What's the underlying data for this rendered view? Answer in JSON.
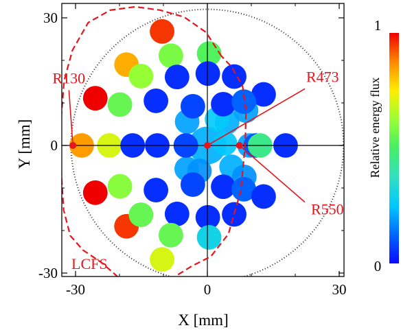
{
  "chart_data": {
    "type": "scatter",
    "title": "",
    "xlabel": "X [mm]",
    "ylabel": "Y [mm]",
    "xlim": [
      -34,
      34
    ],
    "ylim": [
      -34,
      34
    ],
    "x_ticks": [
      {
        "v": -30,
        "label": "-30"
      },
      {
        "v": 0,
        "label": "0"
      },
      {
        "v": 30,
        "label": "30"
      }
    ],
    "y_ticks": [
      {
        "v": 30,
        "label": "30"
      },
      {
        "v": 0,
        "label": "0"
      },
      {
        "v": -30,
        "label": "-30"
      }
    ],
    "grid": false,
    "colorbar": {
      "label": "Relative  energy flux",
      "min": 0,
      "max": 1,
      "min_label": "0",
      "max_label": "1",
      "colors": [
        "#0a0aff",
        "#0066ff",
        "#00c8ff",
        "#33e0c0",
        "#44ee66",
        "#99ff33",
        "#ffee00",
        "#ff8800",
        "#ee0000"
      ]
    },
    "dotted_circle_radius": 32,
    "spot_diameter": 5.6,
    "points": [
      {
        "x": -10.3,
        "y": 26.8,
        "flux": 0.95
      },
      {
        "x": -8.3,
        "y": 21.1,
        "flux": 0.58
      },
      {
        "x": 0.4,
        "y": 21.6,
        "flux": 0.52
      },
      {
        "x": -18.4,
        "y": 19.0,
        "flux": 0.83
      },
      {
        "x": -15.1,
        "y": 16.3,
        "flux": 0.62
      },
      {
        "x": -6.9,
        "y": 16.1,
        "flux": 0.05
      },
      {
        "x": 0.1,
        "y": 16.9,
        "flux": 0.05
      },
      {
        "x": 6.1,
        "y": 16.2,
        "flux": 0.05
      },
      {
        "x": -25.5,
        "y": 11.1,
        "flux": 1.0
      },
      {
        "x": -19.9,
        "y": 9.6,
        "flux": 0.55
      },
      {
        "x": 12.8,
        "y": 12.0,
        "flux": 0.05
      },
      {
        "x": -11.7,
        "y": 10.5,
        "flux": 0.05
      },
      {
        "x": -3.3,
        "y": 9.2,
        "flux": 0.08
      },
      {
        "x": 3.6,
        "y": 9.7,
        "flux": 0.05
      },
      {
        "x": 8.3,
        "y": 10.3,
        "flux": 0.12
      },
      {
        "x": -28.6,
        "y": 0.0,
        "flux": 0.85
      },
      {
        "x": -22.3,
        "y": 0.0,
        "flux": 0.7
      },
      {
        "x": -17.0,
        "y": 0.0,
        "flux": 0.05
      },
      {
        "x": -11.4,
        "y": 0.0,
        "flux": 0.05
      },
      {
        "x": -4.9,
        "y": 0.0,
        "flux": 0.08
      },
      {
        "x": 11.0,
        "y": 0.0,
        "flux": 0.1
      },
      {
        "x": 12.0,
        "y": 0.0,
        "flux": 0.45
      },
      {
        "x": 17.8,
        "y": 0.0,
        "flux": 0.05
      },
      {
        "x": -25.5,
        "y": -11.1,
        "flux": 1.0
      },
      {
        "x": -19.9,
        "y": -9.6,
        "flux": 0.6
      },
      {
        "x": -11.7,
        "y": -10.5,
        "flux": 0.05
      },
      {
        "x": -3.3,
        "y": -9.2,
        "flux": 0.08
      },
      {
        "x": 3.6,
        "y": -9.7,
        "flux": 0.05
      },
      {
        "x": 8.3,
        "y": -10.3,
        "flux": 0.12
      },
      {
        "x": 12.8,
        "y": -12.0,
        "flux": 0.05
      },
      {
        "x": -18.4,
        "y": -19.0,
        "flux": 0.95
      },
      {
        "x": -15.1,
        "y": -16.3,
        "flux": 0.55
      },
      {
        "x": -6.9,
        "y": -16.1,
        "flux": 0.05
      },
      {
        "x": 0.1,
        "y": -16.9,
        "flux": 0.05
      },
      {
        "x": 6.1,
        "y": -16.2,
        "flux": 0.05
      },
      {
        "x": -8.3,
        "y": -21.1,
        "flux": 0.55
      },
      {
        "x": 0.4,
        "y": -21.6,
        "flux": 0.3
      },
      {
        "x": -10.3,
        "y": -26.8,
        "flux": 0.7
      }
    ],
    "central_cluster": [
      {
        "x": 0.0,
        "y": 0.0,
        "d": 8.6,
        "flux": 0.22
      },
      {
        "x": 4.5,
        "y": 5.5,
        "flux": 0.22
      },
      {
        "x": 5.5,
        "y": -5.0,
        "flux": 0.22
      },
      {
        "x": -4.6,
        "y": 5.6,
        "flux": 0.2
      },
      {
        "x": -4.7,
        "y": -5.5,
        "flux": 0.2
      },
      {
        "x": 9.6,
        "y": 0.0,
        "flux": 0.2
      },
      {
        "x": 4.0,
        "y": 0.5,
        "flux": 0.25
      },
      {
        "x": 2.2,
        "y": 6.2,
        "flux": 0.26
      },
      {
        "x": -1.8,
        "y": -6.0,
        "flux": 0.18
      },
      {
        "x": 8.8,
        "y": 8.2,
        "flux": 0.2
      },
      {
        "x": 8.4,
        "y": -7.4,
        "flux": 0.18
      }
    ],
    "lcfs": {
      "label": "LCFS",
      "points": [
        [
          3.2,
          21.0
        ],
        [
          -0.3,
          26.6
        ],
        [
          -5.3,
          30.2
        ],
        [
          -10.7,
          31.8
        ],
        [
          -16.4,
          32.6
        ],
        [
          -22.1,
          31.8
        ],
        [
          -27.1,
          28.9
        ],
        [
          -30.7,
          22.4
        ],
        [
          -32.6,
          15.2
        ],
        [
          -33.2,
          7.3
        ],
        [
          -33.3,
          0.0
        ],
        [
          -33.2,
          -7.3
        ],
        [
          -32.7,
          -15.2
        ],
        [
          -31.2,
          -21.2
        ],
        [
          -28.3,
          -24.6
        ],
        [
          -24.0,
          -27.6
        ],
        [
          -18.5,
          -32.6
        ],
        [
          -14.7,
          -35.0
        ],
        [
          -8.0,
          -31.2
        ],
        [
          -3.6,
          -28.4
        ],
        [
          0.8,
          -26.1
        ],
        [
          4.8,
          -20.8
        ],
        [
          7.6,
          -10.7
        ],
        [
          8.6,
          0.0
        ],
        [
          8.8,
          8.3
        ],
        [
          8.0,
          14.0
        ],
        [
          5.5,
          18.5
        ],
        [
          3.2,
          21.0
        ]
      ]
    },
    "markers": [
      {
        "id": "r130",
        "label": "R130",
        "x": -30.6,
        "y": 0.0,
        "label_x": -31.5,
        "label_y": 13.0
      },
      {
        "id": "r473",
        "label": "R473",
        "x": 0.0,
        "y": 0.0,
        "label_x": 20.0,
        "label_y": 13.0
      },
      {
        "id": "r550",
        "label": "R550",
        "x": 7.3,
        "y": 0.0,
        "label_x": 20.0,
        "label_y": -13.0
      }
    ]
  }
}
